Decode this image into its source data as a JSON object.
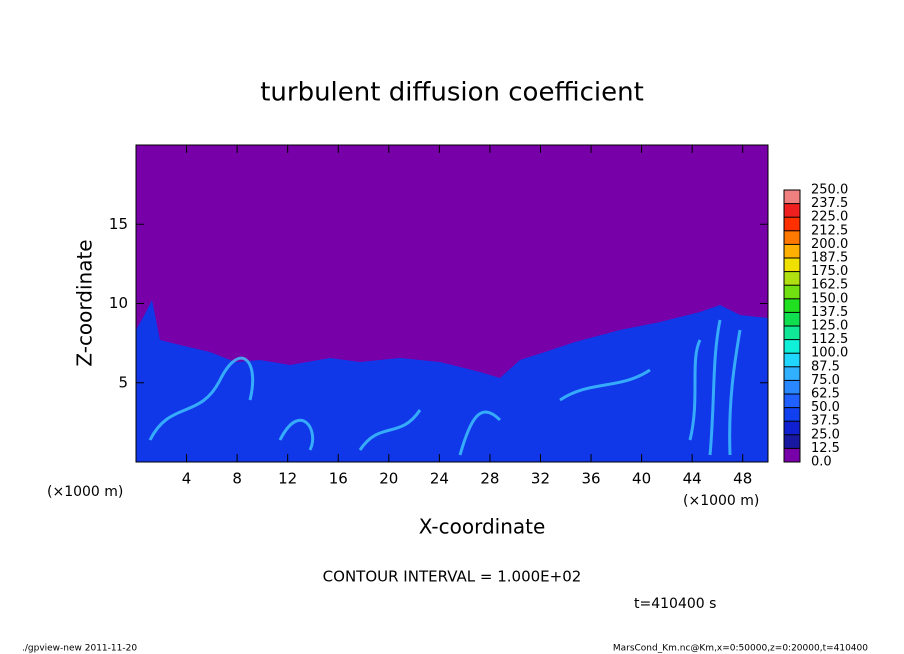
{
  "chart_data": {
    "type": "contour",
    "title": "turbulent diffusion coefficient",
    "xlabel": "X-coordinate",
    "ylabel": "Z-coordinate",
    "x_unit": "(×1000 m)",
    "xlim": [
      0,
      50
    ],
    "xticks": [
      4,
      8,
      12,
      16,
      20,
      24,
      28,
      32,
      36,
      40,
      44,
      48
    ],
    "ylim": [
      0,
      20
    ],
    "yticks": [
      5,
      10,
      15
    ],
    "colorbar": {
      "clim": [
        0,
        250
      ],
      "ticks": [
        {
          "value": 0,
          "label": "0.0"
        },
        {
          "value": 12.5,
          "label": "12.5"
        },
        {
          "value": 25,
          "label": "25.0"
        },
        {
          "value": 37.5,
          "label": "37.5"
        },
        {
          "value": 50,
          "label": "50.0"
        },
        {
          "value": 62.5,
          "label": "62.5"
        },
        {
          "value": 75,
          "label": "75.0"
        },
        {
          "value": 87.5,
          "label": "87.5"
        },
        {
          "value": 100,
          "label": "100.0"
        },
        {
          "value": 112.5,
          "label": "112.5"
        },
        {
          "value": 125,
          "label": "125.0"
        },
        {
          "value": 137.5,
          "label": "137.5"
        },
        {
          "value": 150,
          "label": "150.0"
        },
        {
          "value": 162.5,
          "label": "162.5"
        },
        {
          "value": 175,
          "label": "175.0"
        },
        {
          "value": 187.5,
          "label": "187.5"
        },
        {
          "value": 200,
          "label": "200.0"
        },
        {
          "value": 212.5,
          "label": "212.5"
        },
        {
          "value": 225,
          "label": "225.0"
        },
        {
          "value": 237.5,
          "label": "237.5"
        },
        {
          "value": 250,
          "label": "250.0"
        }
      ],
      "colors": [
        "#7800a8",
        "#1818a0",
        "#1020d0",
        "#1040f0",
        "#2060ff",
        "#2a88ff",
        "#30b0ff",
        "#20d8ff",
        "#10f0d8",
        "#10e898",
        "#10e050",
        "#20e020",
        "#70e010",
        "#b0e010",
        "#f0e000",
        "#ffb000",
        "#ff7800",
        "#ff3000",
        "#f02020",
        "#f08080"
      ]
    },
    "contour_interval": "CONTOUR INTERVAL = 1.000E+02",
    "time": "t=410400 s",
    "footer_left": "./gpview-new   2011-11-20",
    "footer_right": "MarsCond_Km.nc@Km,x=0:50000,z=0:20000,t=410400"
  }
}
